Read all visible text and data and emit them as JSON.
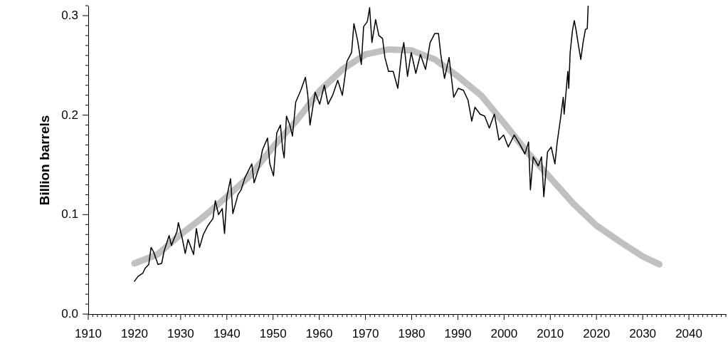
{
  "chart_data": {
    "type": "line",
    "ylabel": "Billion barrels",
    "xlim": [
      1910,
      2048
    ],
    "ylim": [
      0,
      0.31
    ],
    "xticks": [
      1910,
      {
        "value": 1911,
        "label": null
      },
      {
        "value": 1912,
        "label": null
      },
      {
        "value": 1913,
        "label": null
      },
      {
        "value": 1914,
        "label": null
      },
      {
        "value": 1915,
        "label": null
      },
      {
        "value": 1916,
        "label": null
      },
      {
        "value": 1917,
        "label": null
      },
      {
        "value": 1918,
        "label": null
      },
      {
        "value": 1919,
        "label": null
      },
      1920,
      {
        "value": 1921,
        "label": null
      },
      {
        "value": 1922,
        "label": null
      },
      {
        "value": 1923,
        "label": null
      },
      {
        "value": 1924,
        "label": null
      },
      {
        "value": 1925,
        "label": null
      },
      {
        "value": 1926,
        "label": null
      },
      {
        "value": 1927,
        "label": null
      },
      {
        "value": 1928,
        "label": null
      },
      {
        "value": 1929,
        "label": null
      },
      1930,
      {
        "value": 1931,
        "label": null
      },
      {
        "value": 1932,
        "label": null
      },
      {
        "value": 1933,
        "label": null
      },
      {
        "value": 1934,
        "label": null
      },
      {
        "value": 1935,
        "label": null
      },
      {
        "value": 1936,
        "label": null
      },
      {
        "value": 1937,
        "label": null
      },
      {
        "value": 1938,
        "label": null
      },
      {
        "value": 1939,
        "label": null
      },
      1940,
      {
        "value": 1941,
        "label": null
      },
      {
        "value": 1942,
        "label": null
      },
      {
        "value": 1943,
        "label": null
      },
      {
        "value": 1944,
        "label": null
      },
      {
        "value": 1945,
        "label": null
      },
      {
        "value": 1946,
        "label": null
      },
      {
        "value": 1947,
        "label": null
      },
      {
        "value": 1948,
        "label": null
      },
      {
        "value": 1949,
        "label": null
      },
      1950,
      {
        "value": 1951,
        "label": null
      },
      {
        "value": 1952,
        "label": null
      },
      {
        "value": 1953,
        "label": null
      },
      {
        "value": 1954,
        "label": null
      },
      {
        "value": 1955,
        "label": null
      },
      {
        "value": 1956,
        "label": null
      },
      {
        "value": 1957,
        "label": null
      },
      {
        "value": 1958,
        "label": null
      },
      {
        "value": 1959,
        "label": null
      },
      1960,
      {
        "value": 1961,
        "label": null
      },
      {
        "value": 1962,
        "label": null
      },
      {
        "value": 1963,
        "label": null
      },
      {
        "value": 1964,
        "label": null
      },
      {
        "value": 1965,
        "label": null
      },
      {
        "value": 1966,
        "label": null
      },
      {
        "value": 1967,
        "label": null
      },
      {
        "value": 1968,
        "label": null
      },
      {
        "value": 1969,
        "label": null
      },
      1970,
      {
        "value": 1971,
        "label": null
      },
      {
        "value": 1972,
        "label": null
      },
      {
        "value": 1973,
        "label": null
      },
      {
        "value": 1974,
        "label": null
      },
      {
        "value": 1975,
        "label": null
      },
      {
        "value": 1976,
        "label": null
      },
      {
        "value": 1977,
        "label": null
      },
      {
        "value": 1978,
        "label": null
      },
      {
        "value": 1979,
        "label": null
      },
      1980,
      {
        "value": 1981,
        "label": null
      },
      {
        "value": 1982,
        "label": null
      },
      {
        "value": 1983,
        "label": null
      },
      {
        "value": 1984,
        "label": null
      },
      {
        "value": 1985,
        "label": null
      },
      {
        "value": 1986,
        "label": null
      },
      {
        "value": 1987,
        "label": null
      },
      {
        "value": 1988,
        "label": null
      },
      {
        "value": 1989,
        "label": null
      },
      1990,
      {
        "value": 1991,
        "label": null
      },
      {
        "value": 1992,
        "label": null
      },
      {
        "value": 1993,
        "label": null
      },
      {
        "value": 1994,
        "label": null
      },
      {
        "value": 1995,
        "label": null
      },
      {
        "value": 1996,
        "label": null
      },
      {
        "value": 1997,
        "label": null
      },
      {
        "value": 1998,
        "label": null
      },
      {
        "value": 1999,
        "label": null
      },
      2000,
      {
        "value": 2001,
        "label": null
      },
      {
        "value": 2002,
        "label": null
      },
      {
        "value": 2003,
        "label": null
      },
      {
        "value": 2004,
        "label": null
      },
      {
        "value": 2005,
        "label": null
      },
      {
        "value": 2006,
        "label": null
      },
      {
        "value": 2007,
        "label": null
      },
      {
        "value": 2008,
        "label": null
      },
      {
        "value": 2009,
        "label": null
      },
      2010,
      {
        "value": 2011,
        "label": null
      },
      {
        "value": 2012,
        "label": null
      },
      {
        "value": 2013,
        "label": null
      },
      {
        "value": 2014,
        "label": null
      },
      {
        "value": 2015,
        "label": null
      },
      {
        "value": 2016,
        "label": null
      },
      {
        "value": 2017,
        "label": null
      },
      {
        "value": 2018,
        "label": null
      },
      {
        "value": 2019,
        "label": null
      },
      2020,
      {
        "value": 2021,
        "label": null
      },
      {
        "value": 2022,
        "label": null
      },
      {
        "value": 2023,
        "label": null
      },
      {
        "value": 2024,
        "label": null
      },
      {
        "value": 2025,
        "label": null
      },
      {
        "value": 2026,
        "label": null
      },
      {
        "value": 2027,
        "label": null
      },
      {
        "value": 2028,
        "label": null
      },
      {
        "value": 2029,
        "label": null
      },
      2030,
      {
        "value": 2031,
        "label": null
      },
      {
        "value": 2032,
        "label": null
      },
      {
        "value": 2033,
        "label": null
      },
      {
        "value": 2034,
        "label": null
      },
      {
        "value": 2035,
        "label": null
      },
      {
        "value": 2036,
        "label": null
      },
      {
        "value": 2037,
        "label": null
      },
      {
        "value": 2038,
        "label": null
      },
      {
        "value": 2039,
        "label": null
      },
      2040,
      {
        "value": 2041,
        "label": null
      },
      {
        "value": 2042,
        "label": null
      },
      {
        "value": 2043,
        "label": null
      },
      {
        "value": 2044,
        "label": null
      },
      {
        "value": 2045,
        "label": null
      },
      {
        "value": 2046,
        "label": null
      },
      {
        "value": 2047,
        "label": null
      },
      {
        "value": 2048,
        "label": null
      }
    ],
    "yticks": [
      {
        "value": 0,
        "label": "0.0"
      },
      {
        "value": 0.01,
        "label": null
      },
      {
        "value": 0.02,
        "label": null
      },
      {
        "value": 0.03,
        "label": null
      },
      {
        "value": 0.04,
        "label": null
      },
      {
        "value": 0.05,
        "label": null
      },
      {
        "value": 0.06,
        "label": null
      },
      {
        "value": 0.07,
        "label": null
      },
      {
        "value": 0.08,
        "label": null
      },
      {
        "value": 0.09,
        "label": null
      },
      0.1,
      {
        "value": 0.11,
        "label": null
      },
      {
        "value": 0.12,
        "label": null
      },
      {
        "value": 0.13,
        "label": null
      },
      {
        "value": 0.14,
        "label": null
      },
      {
        "value": 0.15,
        "label": null
      },
      {
        "value": 0.16,
        "label": null
      },
      {
        "value": 0.17,
        "label": null
      },
      {
        "value": 0.18,
        "label": null
      },
      {
        "value": 0.19,
        "label": null
      },
      0.2,
      {
        "value": 0.21,
        "label": null
      },
      {
        "value": 0.22,
        "label": null
      },
      {
        "value": 0.23,
        "label": null
      },
      {
        "value": 0.24,
        "label": null
      },
      {
        "value": 0.25,
        "label": null
      },
      {
        "value": 0.26,
        "label": null
      },
      {
        "value": 0.27,
        "label": null
      },
      {
        "value": 0.28,
        "label": null
      },
      {
        "value": 0.29,
        "label": null
      },
      0.3,
      {
        "value": 0.31,
        "label": null
      }
    ],
    "marker": "none",
    "line_style": "solid",
    "series": [
      {
        "type": "line",
        "color": "#c0c0c0",
        "x": [
          1920,
          1925,
          1930,
          1935,
          1940,
          1945,
          1950,
          1955,
          1960,
          1965,
          1970,
          1975,
          1980,
          1985,
          1990,
          1995,
          2000,
          2005,
          2010,
          2015,
          2020,
          2025,
          2030,
          2033.6
        ],
        "values": [
          0.051,
          0.06,
          0.08,
          0.098,
          0.118,
          0.139,
          0.168,
          0.194,
          0.224,
          0.246,
          0.261,
          0.266,
          0.265,
          0.256,
          0.239,
          0.22,
          0.192,
          0.163,
          0.137,
          0.111,
          0.089,
          0.073,
          0.058,
          0.05
        ]
      },
      {
        "type": "line",
        "color": "#000000",
        "x": [
          1920.0,
          1920.8,
          1921.8,
          1922.3,
          1923.1,
          1923.6,
          1924.1,
          1925.1,
          1925.9,
          1926.4,
          1927.5,
          1928.0,
          1929.2,
          1929.5,
          1930.3,
          1931.0,
          1931.6,
          1932.8,
          1933.4,
          1934.1,
          1934.9,
          1935.9,
          1937.0,
          1937.5,
          1938.2,
          1939.0,
          1939.5,
          1940.0,
          1940.8,
          1941.3,
          1942.4,
          1943.1,
          1943.9,
          1945.4,
          1945.9,
          1947.0,
          1947.7,
          1948.8,
          1949.3,
          1950.1,
          1950.8,
          1951.6,
          1952.1,
          1952.4,
          1952.9,
          1953.7,
          1954.2,
          1954.9,
          1956.0,
          1957.0,
          1957.5,
          1958.0,
          1959.1,
          1960.1,
          1961.1,
          1961.9,
          1962.9,
          1964.0,
          1965.0,
          1966.0,
          1967.0,
          1967.5,
          1968.3,
          1969.1,
          1969.6,
          1970.4,
          1970.9,
          1971.4,
          1972.2,
          1972.9,
          1973.7,
          1974.2,
          1975.0,
          1976.0,
          1977.0,
          1977.8,
          1978.3,
          1979.1,
          1979.9,
          1980.9,
          1981.9,
          1983.0,
          1984.0,
          1985.0,
          1985.8,
          1986.3,
          1987.1,
          1988.1,
          1989.1,
          1990.1,
          1991.2,
          1992.2,
          1993.0,
          1993.7,
          1994.8,
          1995.8,
          1996.8,
          1997.9,
          1998.9,
          1999.9,
          2000.9,
          2002.2,
          2003.5,
          2004.5,
          2005.3,
          2005.7,
          2006.3,
          2007.4,
          2008.1,
          2008.6,
          2009.4,
          2010.2,
          2011.0,
          2011.5,
          2012.2,
          2012.8,
          2013.0,
          2013.8,
          2014.0,
          2014.3,
          2014.8,
          2015.2,
          2015.6,
          2016.1,
          2016.6,
          2017.1,
          2017.6,
          2018.0,
          2018.2
        ],
        "values": [
          0.033,
          0.038,
          0.041,
          0.046,
          0.05,
          0.067,
          0.063,
          0.05,
          0.051,
          0.063,
          0.079,
          0.069,
          0.083,
          0.092,
          0.077,
          0.061,
          0.075,
          0.06,
          0.086,
          0.067,
          0.08,
          0.089,
          0.096,
          0.114,
          0.1,
          0.106,
          0.081,
          0.118,
          0.136,
          0.101,
          0.12,
          0.125,
          0.137,
          0.151,
          0.132,
          0.148,
          0.165,
          0.177,
          0.151,
          0.139,
          0.182,
          0.19,
          0.165,
          0.157,
          0.199,
          0.189,
          0.179,
          0.213,
          0.225,
          0.238,
          0.221,
          0.19,
          0.223,
          0.211,
          0.23,
          0.211,
          0.22,
          0.235,
          0.22,
          0.254,
          0.263,
          0.292,
          0.275,
          0.251,
          0.289,
          0.294,
          0.308,
          0.273,
          0.296,
          0.28,
          0.277,
          0.258,
          0.244,
          0.244,
          0.227,
          0.261,
          0.273,
          0.239,
          0.263,
          0.242,
          0.261,
          0.246,
          0.273,
          0.282,
          0.282,
          0.261,
          0.237,
          0.258,
          0.218,
          0.227,
          0.225,
          0.215,
          0.194,
          0.208,
          0.201,
          0.199,
          0.187,
          0.201,
          0.175,
          0.18,
          0.168,
          0.18,
          0.17,
          0.161,
          0.173,
          0.125,
          0.158,
          0.149,
          0.158,
          0.118,
          0.163,
          0.168,
          0.151,
          0.173,
          0.196,
          0.218,
          0.201,
          0.244,
          0.227,
          0.263,
          0.285,
          0.295,
          0.285,
          0.27,
          0.256,
          0.273,
          0.286,
          0.287,
          0.31
        ]
      }
    ]
  }
}
